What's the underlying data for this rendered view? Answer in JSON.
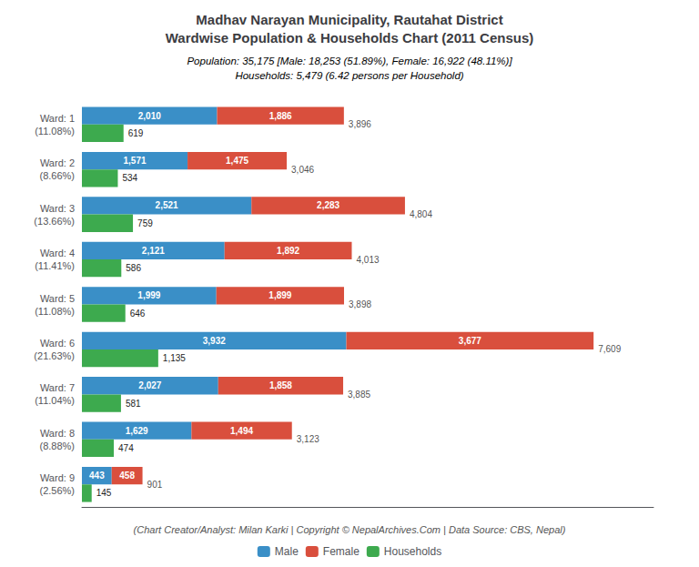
{
  "chart_data": {
    "type": "bar",
    "orientation": "horizontal",
    "title": "Madhav Narayan Municipality, Rautahat District\nWardwise Population & Households Chart (2011 Census)",
    "subtitle": "Population: 35,175 [Male: 18,253 (51.89%), Female: 16,922 (48.11%)]\nHouseholds: 5,479 (6.42 persons per Household)",
    "annotations": [
      "(Chart Creator/Analyst: Milan Karki | Copyright © NepalArchives.Com | Data Source: CBS, Nepal)"
    ],
    "categories": [
      "Ward: 1\n(11.08%)",
      "Ward: 2\n(8.66%)",
      "Ward: 3\n(13.66%)",
      "Ward: 4\n(11.41%)",
      "Ward: 5\n(11.08%)",
      "Ward: 6\n(21.63%)",
      "Ward: 7\n(11.04%)",
      "Ward: 8\n(8.88%)",
      "Ward: 9\n(2.56%)"
    ],
    "series": [
      {
        "name": "Male",
        "color": "#3a8fc7",
        "stacked": true,
        "values": [
          2010,
          1571,
          2521,
          2121,
          1999,
          3932,
          2027,
          1629,
          443
        ],
        "value_labels": [
          "2,010",
          "1,571",
          "2,521",
          "2,121",
          "1,999",
          "3,932",
          "2,027",
          "1,629",
          "443"
        ]
      },
      {
        "name": "Female",
        "color": "#d94f3d",
        "stacked": true,
        "values": [
          1886,
          1475,
          2283,
          1892,
          1899,
          3677,
          1858,
          1494,
          458
        ],
        "value_labels": [
          "1,886",
          "1,475",
          "2,283",
          "1,892",
          "1,899",
          "3,677",
          "1,858",
          "1,494",
          "458"
        ]
      },
      {
        "name": "Households",
        "color": "#3daa4e",
        "stacked": false,
        "values": [
          619,
          534,
          759,
          586,
          646,
          1135,
          581,
          474,
          145
        ],
        "value_labels": [
          "619",
          "534",
          "759",
          "586",
          "646",
          "1,135",
          "581",
          "474",
          "145"
        ]
      }
    ],
    "totals": [
      3896,
      3046,
      4804,
      4013,
      3898,
      7609,
      3885,
      3123,
      901
    ],
    "total_labels": [
      "3,896",
      "3,046",
      "4,804",
      "4,013",
      "3,898",
      "7,609",
      "3,885",
      "3,123",
      "901"
    ],
    "xlim": [
      0,
      8500
    ],
    "data_labels": true,
    "tick_labels": "y",
    "grid": false,
    "legend": "bottom"
  }
}
